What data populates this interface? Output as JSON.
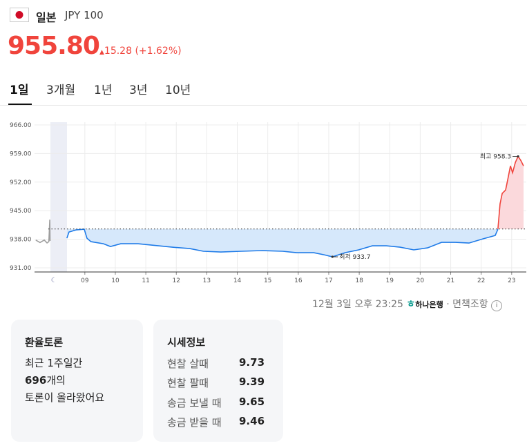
{
  "header": {
    "country": "일본",
    "currency": "JPY 100",
    "price": "955.80",
    "change": 15.28,
    "change_pct": "(+1.62%)"
  },
  "tabs": [
    "1일",
    "3개월",
    "1년",
    "3년",
    "10년"
  ],
  "chart_data": {
    "type": "line",
    "xlim": [
      7.35,
      23.48
    ],
    "ylim": [
      931,
      966
    ],
    "xticks": [
      {
        "value": 9,
        "label": "09"
      },
      10,
      11,
      12,
      13,
      14,
      15,
      16,
      17,
      18,
      19,
      20,
      21,
      22,
      23
    ],
    "yticks": [
      {
        "value": 966,
        "label": "966.00"
      },
      {
        "value": 959,
        "label": "959.00"
      },
      {
        "value": 952,
        "label": "952.00"
      },
      {
        "value": 945,
        "label": "945.00"
      },
      {
        "value": 938,
        "label": "938.00"
      },
      {
        "value": 931,
        "label": "931.00"
      }
    ],
    "grid": true,
    "baseline": 940.52,
    "series": [
      {
        "color": "#9e9e9e",
        "x": [
          7.39,
          7.53,
          7.67,
          7.76,
          7.82,
          7.85,
          7.86
        ],
        "values": [
          937.8,
          937.2,
          937.8,
          937.1,
          937.4,
          942.8,
          937.6
        ]
      },
      {
        "color": "#1f7be8",
        "area": "#d6e8fb",
        "x": [
          8.41,
          8.48,
          8.71,
          8.98,
          9.07,
          9.2,
          9.61,
          9.84,
          10.18,
          10.74,
          11.19,
          11.87,
          12.44,
          12.89,
          13.46,
          14.13,
          14.81,
          15.49,
          15.95,
          16.51,
          16.85,
          17.12,
          17.53,
          17.98,
          18.43,
          18.89,
          19.34,
          19.79,
          20.24,
          20.7,
          21.15,
          21.6,
          22.05,
          22.46,
          22.55
        ],
        "values": [
          938.25,
          939.77,
          940.28,
          940.45,
          938.25,
          937.41,
          936.9,
          936.23,
          936.9,
          936.9,
          936.57,
          936.06,
          935.72,
          935.05,
          934.88,
          935.05,
          935.22,
          935.05,
          934.71,
          934.71,
          934.2,
          933.7,
          934.71,
          935.39,
          936.4,
          936.4,
          936.06,
          935.39,
          935.89,
          937.24,
          937.24,
          937.07,
          938.08,
          938.93,
          940.45
        ]
      },
      {
        "color": "#f0443c",
        "area": "#fbd9dc",
        "x": [
          22.55,
          22.62,
          22.69,
          22.8,
          22.87,
          22.96,
          23.03,
          23.12,
          23.21,
          23.3,
          23.39
        ],
        "values": [
          940.52,
          946.69,
          949.22,
          950.06,
          952.59,
          955.96,
          954.28,
          956.81,
          958.3,
          957.3,
          955.96
        ]
      }
    ],
    "annotations": [
      {
        "text": "최고 958.3",
        "x": 23.21,
        "y": 958.3
      },
      {
        "text": "최저 933.7",
        "x": 17.12,
        "y": 933.7
      }
    ]
  },
  "footer": {
    "timestamp": "12월 3일 오후 23:25",
    "source": "하나은행",
    "disclaimer": "면책조항"
  },
  "discussion": {
    "title": "환율토론",
    "line1": "최근 1주일간",
    "count": 696,
    "count_suffix": "개의",
    "line3": "토론이 올라왔어요"
  },
  "quotes": {
    "title": "시세정보",
    "rows": [
      [
        "현찰 살때",
        9.73
      ],
      [
        "현찰 팔때",
        9.39
      ],
      [
        "송금 보낼 때",
        9.65
      ],
      [
        "송금 받을 때",
        9.46
      ]
    ]
  }
}
